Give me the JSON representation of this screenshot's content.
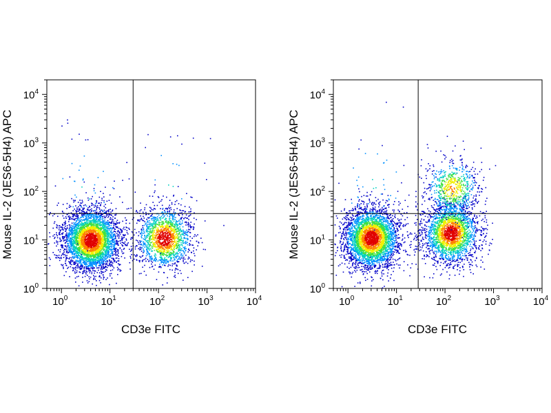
{
  "chart_data": [
    {
      "type": "scatter",
      "xlabel": "CD3e FITC",
      "ylabel": "Mouse IL-2 (JES6-5H4) APC",
      "x_scale": "log",
      "y_scale": "log",
      "xlim": [
        0.5,
        10000
      ],
      "ylim": [
        1,
        20000
      ],
      "x_ticks": [
        "10^0",
        "10^1",
        "10^2",
        "10^3",
        "10^4"
      ],
      "y_ticks": [
        "10^0",
        "10^1",
        "10^2",
        "10^3",
        "10^4"
      ],
      "gate": {
        "x": 30,
        "y": 35
      },
      "color_scale": [
        "#0000c8",
        "#0090ff",
        "#00d0c0",
        "#40e040",
        "#f0f000",
        "#ff8000",
        "#e00000"
      ],
      "populations": [
        {
          "x": 4,
          "y": 10,
          "count": 4000
        },
        {
          "x": 130,
          "y": 11,
          "count": 1700
        },
        {
          "x": 3,
          "y": 100,
          "count": 60
        },
        {
          "x": 150,
          "y": 150,
          "count": 30
        }
      ]
    },
    {
      "type": "scatter",
      "xlabel": "CD3e FITC",
      "ylabel": "Mouse IL-2 (JES6-5H4) APC",
      "x_scale": "log",
      "y_scale": "log",
      "xlim": [
        0.5,
        10000
      ],
      "ylim": [
        1,
        20000
      ],
      "x_ticks": [
        "10^0",
        "10^1",
        "10^2",
        "10^3",
        "10^4"
      ],
      "y_ticks": [
        "10^0",
        "10^1",
        "10^2",
        "10^3",
        "10^4"
      ],
      "gate": {
        "x": 28,
        "y": 35
      },
      "color_scale": [
        "#0000c8",
        "#0090ff",
        "#00d0c0",
        "#40e040",
        "#f0f000",
        "#ff8000",
        "#e00000"
      ],
      "populations": [
        {
          "x": 3,
          "y": 11,
          "count": 3500
        },
        {
          "x": 130,
          "y": 14,
          "count": 2400
        },
        {
          "x": 140,
          "y": 120,
          "count": 700
        },
        {
          "x": 3,
          "y": 120,
          "count": 60
        }
      ]
    }
  ]
}
